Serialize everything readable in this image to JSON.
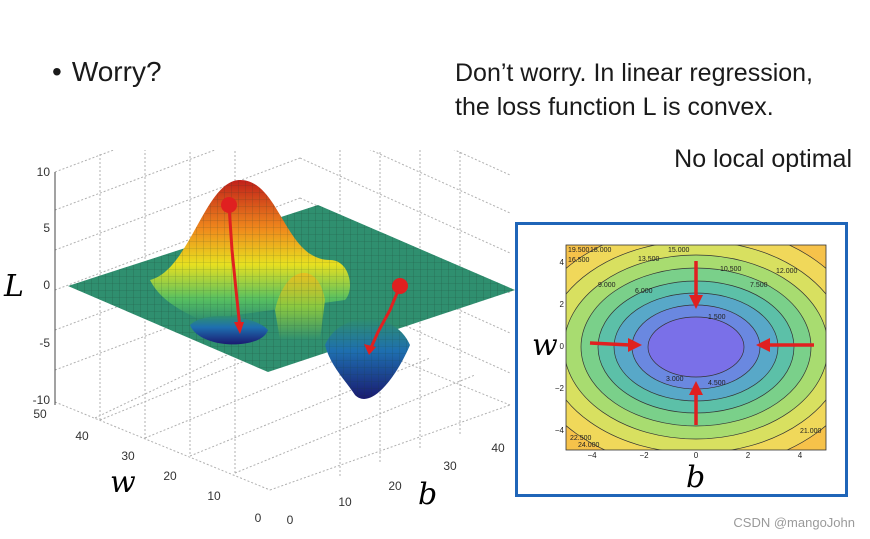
{
  "heading": {
    "bullet": "•",
    "text": "Worry?"
  },
  "explanation": {
    "line1": "Don’t worry. In linear regression,",
    "line2": "the loss function L is convex.",
    "line3": "No local optimal"
  },
  "surface_plot": {
    "z_label": "L",
    "x_label": "w",
    "y_label": "b",
    "z_ticks": [
      "10",
      "5",
      "0",
      "-5",
      "-10"
    ],
    "w_ticks": [
      "50",
      "40",
      "30",
      "20",
      "10",
      "0"
    ],
    "b_ticks": [
      "0",
      "10",
      "20",
      "30",
      "40"
    ],
    "colors": {
      "plane": "#2f8f6f",
      "arrow": "#e02020"
    }
  },
  "contour_plot": {
    "y_label": "w",
    "x_label": "b",
    "x_ticks": [
      "−4",
      "−2",
      "0",
      "2",
      "4"
    ],
    "y_ticks": [
      "4",
      "2",
      "0",
      "−2",
      "−4"
    ],
    "contour_labels": [
      "19.500",
      "18.000",
      "16.500",
      "15.000",
      "13.500",
      "12.000",
      "10.500",
      "9.000",
      "7.500",
      "6.000",
      "4.500",
      "3.000",
      "1.500",
      "21.000",
      "22.500",
      "24.000"
    ],
    "colors": {
      "border": "#1f65b8",
      "arrow": "#e02020"
    }
  },
  "watermark": "CSDN @mangoJohn"
}
